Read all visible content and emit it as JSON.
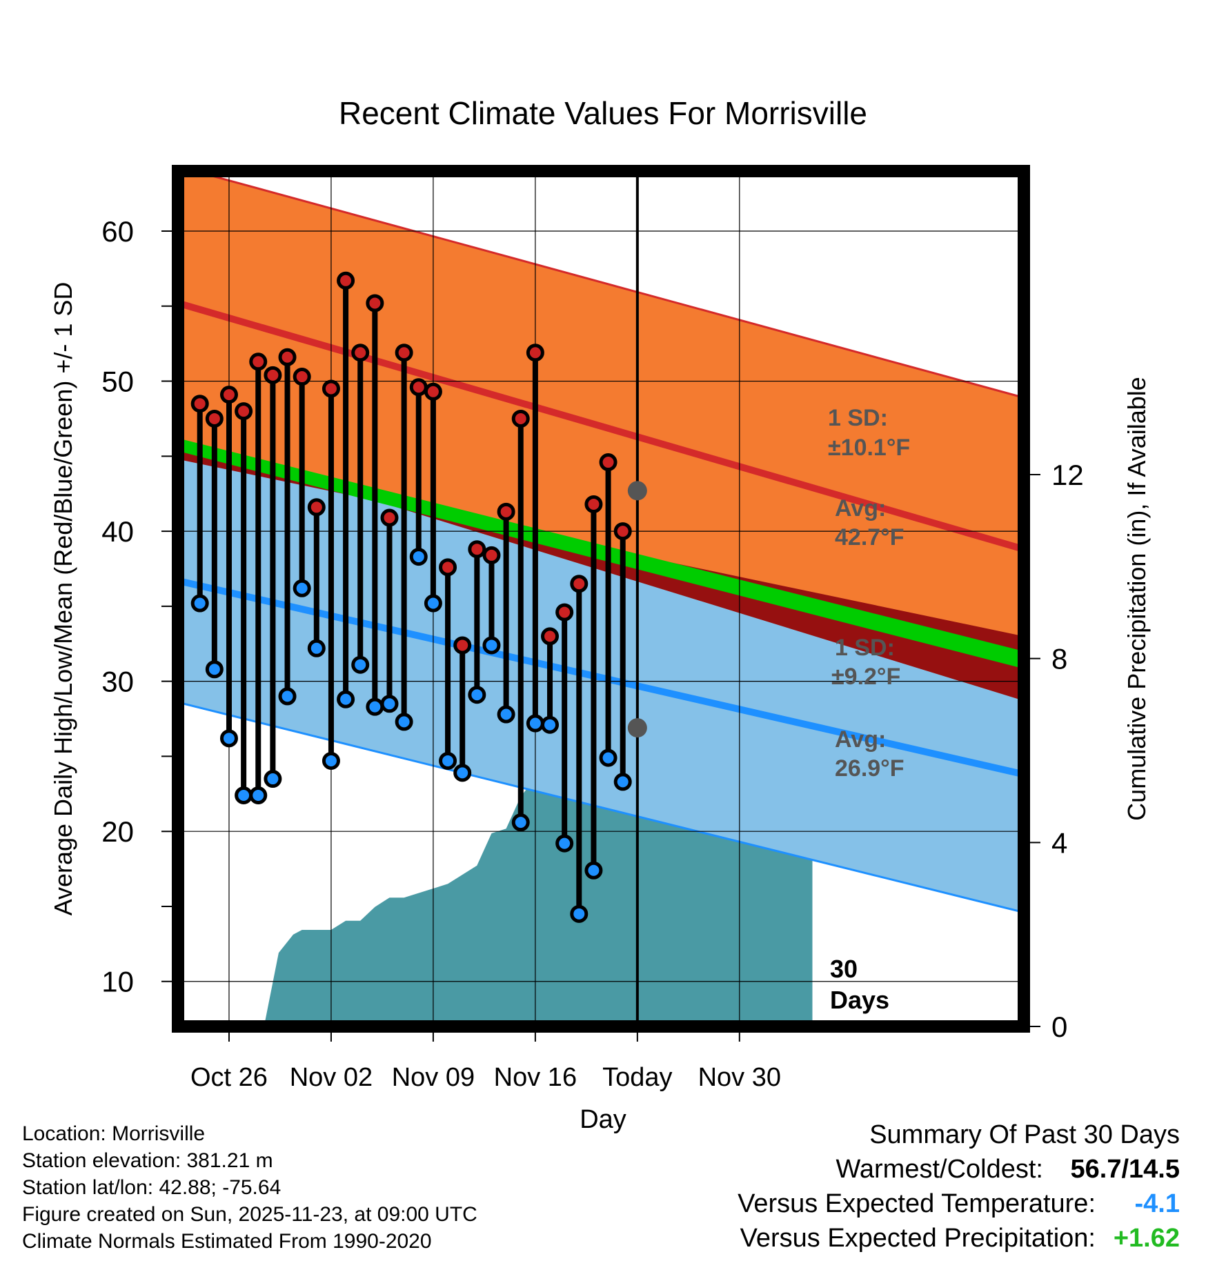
{
  "chart_data": {
    "type": "line",
    "title": "Recent Climate Values For Morrisville",
    "xlabel": "Day",
    "ylabel": "Average Daily High/Low/Mean (Red/Blue/Green) +/- 1 SD",
    "y2label": "Cumulative Precipitation (in), If Available",
    "ylim": [
      7,
      64
    ],
    "y2lim": [
      0,
      18.6
    ],
    "xlim": [
      -3.5,
      54.5
    ],
    "xtick_labels": [
      {
        "x": 0,
        "label": "Oct 26"
      },
      {
        "x": 7,
        "label": "Nov 02"
      },
      {
        "x": 14,
        "label": "Nov 09"
      },
      {
        "x": 21,
        "label": "Nov 16"
      },
      {
        "x": 28,
        "label": "Today"
      },
      {
        "x": 35,
        "label": "Nov 30"
      }
    ],
    "yticks": [
      10,
      20,
      30,
      40,
      50,
      60
    ],
    "y2ticks": [
      0,
      4,
      8,
      12
    ],
    "normals": {
      "high_avg": [
        55.2,
        38.8
      ],
      "high_sd_upper": [
        64.3,
        48.9
      ],
      "low_avg": [
        36.7,
        23.8
      ],
      "low_sd_lower": [
        28.6,
        14.6
      ],
      "mean_avg": [
        45.8,
        31.3
      ],
      "mean_avg_upper": [
        46.2,
        32.0
      ],
      "sd_high": "1 SD:",
      "sd_high_value": "±10.1°F",
      "avg_high": "Avg:",
      "avg_high_value": "42.7°F",
      "sd_low": "1 SD:",
      "sd_low_value": "±9.2°F",
      "avg_low": "Avg:",
      "avg_low_value": "26.9°F",
      "today_high": 42.7,
      "today_low": 26.9
    },
    "days_label": "30",
    "days_label_2": "Days",
    "series": [
      {
        "name": "High",
        "values": [
          48.5,
          47.5,
          49.1,
          48.0,
          51.3,
          50.4,
          51.6,
          50.3,
          41.6,
          49.5,
          56.7,
          51.9,
          55.2,
          40.9,
          51.9,
          49.6,
          49.3,
          37.6,
          32.4,
          38.8,
          38.4,
          41.3,
          47.5,
          51.9,
          33.0,
          34.6,
          36.5,
          41.8,
          44.6,
          40.0
        ]
      },
      {
        "name": "Low",
        "values": [
          35.2,
          30.8,
          26.2,
          22.4,
          22.4,
          23.5,
          29.0,
          36.2,
          32.2,
          24.7,
          28.8,
          31.1,
          28.3,
          28.5,
          27.3,
          38.3,
          35.2,
          24.7,
          23.9,
          29.1,
          32.4,
          27.8,
          20.6,
          27.2,
          27.1,
          19.2,
          14.5,
          17.4,
          24.9,
          23.3
        ]
      },
      {
        "name": "Cumulative Precipitation",
        "x": [
          2.4,
          3.4,
          4.4,
          5.0,
          7.0,
          8.0,
          9.0,
          10.0,
          11.0,
          12.0,
          14.0,
          15.0,
          16.0,
          17.0,
          18.0,
          19.0,
          20.0,
          21.0,
          22.0,
          23.0,
          24.0,
          27.0,
          28.0,
          40.0
        ],
        "values": [
          0,
          1.6,
          2.0,
          2.1,
          2.1,
          2.3,
          2.3,
          2.6,
          2.8,
          2.8,
          3.0,
          3.1,
          3.3,
          3.5,
          4.2,
          4.3,
          5.0,
          5.4,
          5.5,
          5.5,
          5.5,
          5.5,
          5.5,
          5.5
        ]
      }
    ]
  },
  "info": {
    "location": "Location: Morrisville",
    "elevation": "Station elevation: 381.21 m",
    "latlon": "Station lat/lon: 42.88; -75.64",
    "created": "Figure created on Sun, 2025-11-23, at 09:00 UTC",
    "normals": "Climate Normals Estimated From 1990-2020"
  },
  "summary": {
    "heading": "Summary Of Past 30 Days",
    "warm_cold_label": "Warmest/Coldest:",
    "warm_cold_value": "56.7/14.5",
    "temp_label": "Versus Expected Temperature:",
    "temp_value": "-4.1",
    "precip_label": "Versus Expected Precipitation:",
    "precip_value": "+1.62"
  },
  "colors": {
    "high_band": "#f47b30",
    "high_line": "#d42a2a",
    "low_band": "#85c1e8",
    "low_line": "#1e90ff",
    "mean_line": "#00cc00",
    "overlap": "#961010",
    "precip": "#4a9aa4",
    "high_marker": "#cc2222",
    "low_marker": "#1e90ff",
    "label_gray": "#555555",
    "temp_value": "#1e90ff",
    "precip_value": "#22bb22"
  }
}
